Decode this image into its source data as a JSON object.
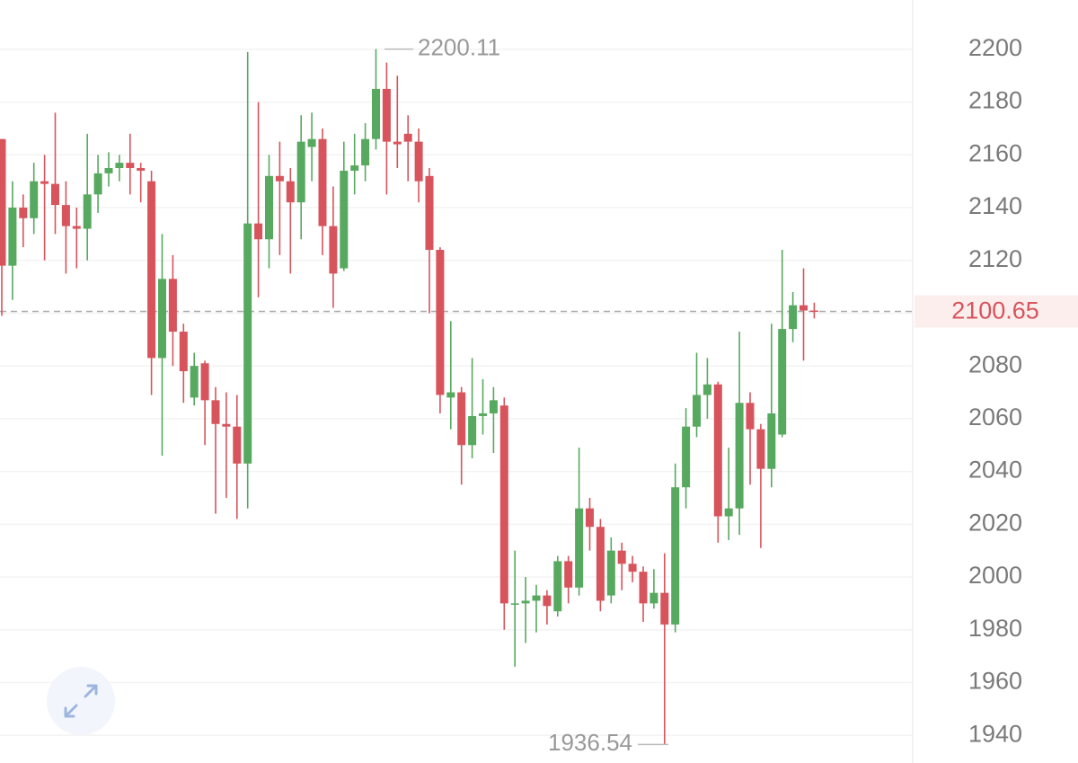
{
  "chart_data": {
    "type": "candlestick",
    "up_color": "#57a95f",
    "down_color": "#d7545c",
    "grid": true,
    "ylim": [
      1929.5,
      2218.7
    ],
    "yticks": [
      1940,
      1960,
      1980,
      2000,
      2020,
      2040,
      2060,
      2080,
      2100,
      2120,
      2140,
      2160,
      2180,
      2200
    ],
    "high_marker": 2200.11,
    "low_marker": 1936.54,
    "last_price": 2100.65,
    "open": [
      2166,
      2118,
      2140,
      2136,
      2150,
      2149,
      2141,
      2133,
      2132,
      2145,
      2153,
      2155,
      2157,
      2155,
      2150,
      2083,
      2113,
      2093,
      2068,
      2081,
      2067,
      2058,
      2057,
      2043,
      2134,
      2128,
      2152,
      2150,
      2142,
      2163,
      2166,
      2133,
      2117,
      2154,
      2156,
      2166,
      2185,
      2165,
      2168,
      2165,
      2152,
      2124,
      2068,
      2070,
      2050,
      2061,
      2062,
      2065,
      1990,
      1990,
      1991,
      1993,
      1987,
      2006,
      1996,
      2026,
      2019,
      1993,
      2010,
      2005,
      2002,
      1990,
      1994,
      1982,
      2034,
      2057,
      2069,
      2073,
      2023,
      2026,
      2066,
      2056,
      2041,
      2054,
      2094,
      2103,
      2101
    ],
    "high": [
      2166,
      2150,
      2145,
      2157,
      2160,
      2176,
      2150,
      2140,
      2168,
      2160,
      2161,
      2160,
      2168,
      2157,
      2154,
      2130,
      2122,
      2096,
      2085,
      2082,
      2072,
      2070,
      2069,
      2199,
      2180,
      2160,
      2165,
      2155,
      2175,
      2176,
      2170,
      2148,
      2165,
      2168,
      2172,
      2200.11,
      2195,
      2190,
      2175,
      2170,
      2155,
      2125,
      2097,
      2072,
      2083,
      2075,
      2072,
      2068,
      2010,
      2000,
      1997,
      1995,
      2008,
      2008,
      2049,
      2030,
      2022,
      2015,
      2013,
      2008,
      2004,
      2003,
      2009,
      2043,
      2064,
      2085,
      2083,
      2074,
      2049,
      2093,
      2070,
      2058,
      2096,
      2124,
      2108,
      2117,
      2104
    ],
    "low": [
      2099,
      2105,
      2125,
      2130,
      2120,
      2130,
      2115,
      2117,
      2120,
      2138,
      2148,
      2150,
      2145,
      2142,
      2069,
      2046,
      2080,
      2066,
      2065,
      2050,
      2024,
      2030,
      2022,
      2026,
      2106,
      2117,
      2122,
      2115,
      2128,
      2150,
      2122,
      2102,
      2116,
      2145,
      2150,
      2162,
      2145,
      2155,
      2150,
      2142,
      2100,
      2062,
      2056,
      2035,
      2045,
      2054,
      2047,
      1980,
      1966,
      1975,
      1979,
      1982,
      1985,
      1990,
      1993,
      2010,
      1987,
      1990,
      1995,
      1998,
      1983,
      1988,
      1936.54,
      1979,
      2026,
      2053,
      2060,
      2013,
      2014,
      2016,
      2035,
      2011,
      2034,
      2053,
      2089,
      2082,
      2098
    ],
    "close": [
      2118,
      2140,
      2136,
      2150,
      2149,
      2141,
      2133,
      2132,
      2145,
      2153,
      2155,
      2157,
      2155,
      2154,
      2083,
      2113,
      2093,
      2078,
      2080,
      2067,
      2058,
      2057,
      2043,
      2134,
      2128,
      2152,
      2150,
      2142,
      2165,
      2166,
      2133,
      2115,
      2154,
      2156,
      2166,
      2185,
      2165,
      2164,
      2165,
      2150,
      2124,
      2069,
      2070,
      2050,
      2061,
      2062,
      2067,
      1990,
      1990,
      1991,
      1993,
      1989,
      2006,
      1996,
      2026,
      2019,
      1991,
      2010,
      2005,
      2002,
      1990,
      1994,
      1982,
      2034,
      2057,
      2069,
      2073,
      2023,
      2026,
      2066,
      2056,
      2041,
      2062,
      2094,
      2103,
      2101,
      2100.65
    ]
  }
}
